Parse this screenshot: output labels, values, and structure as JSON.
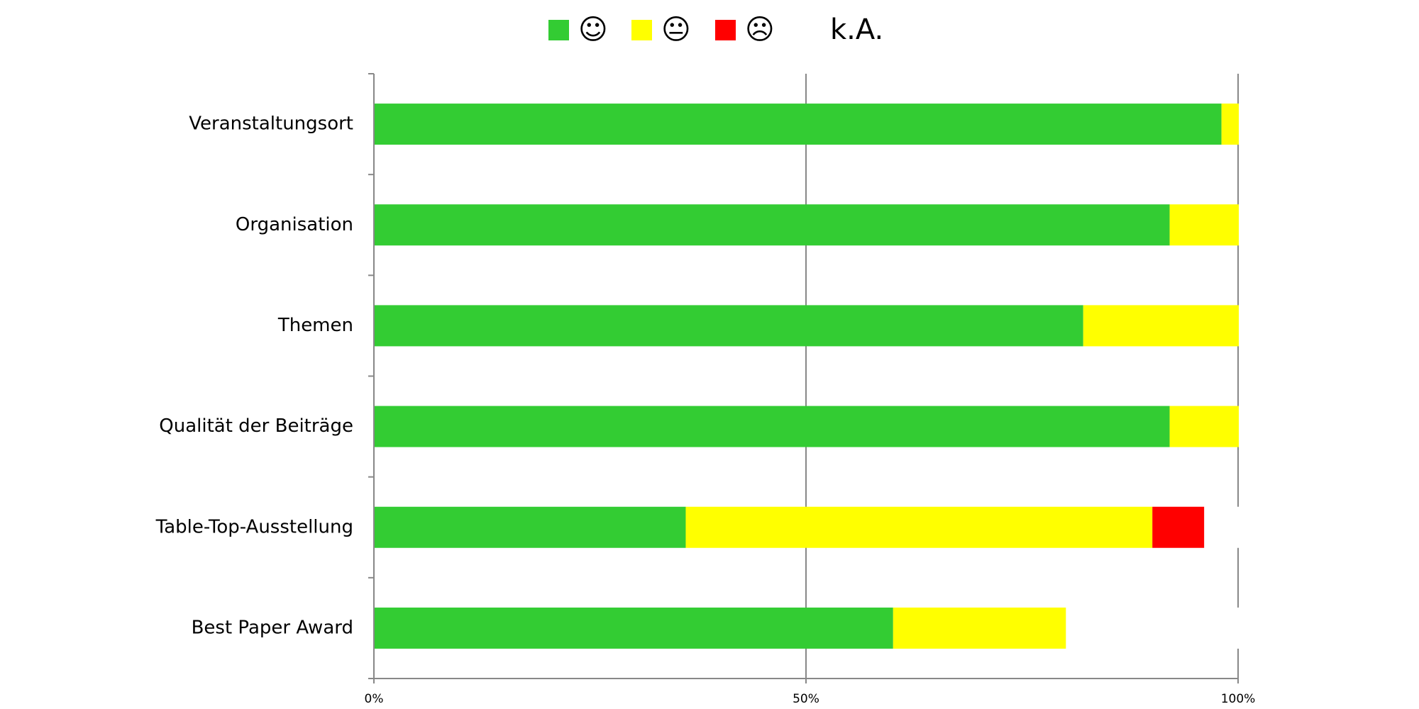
{
  "chart_data": {
    "type": "stacked-barh",
    "categories": [
      "Veranstaltungsort",
      "Organisation",
      "Themen",
      "Qualität der Beiträge",
      "Table-Top-Ausstellung",
      "Best Paper Award"
    ],
    "series": [
      {
        "name": "☺",
        "color": "#33cc33",
        "values": [
          98,
          92,
          82,
          92,
          36,
          60
        ]
      },
      {
        "name": "😐",
        "color": "#ffff00",
        "values": [
          2,
          8,
          18,
          8,
          54,
          20
        ]
      },
      {
        "name": "☹",
        "color": "#ff0000",
        "values": [
          0,
          0,
          0,
          0,
          6,
          0
        ]
      },
      {
        "name": "k.A.",
        "color": "#ffffff",
        "values": [
          0,
          0,
          0,
          0,
          4,
          20
        ]
      }
    ],
    "xlim": [
      0,
      100
    ],
    "xticks": [
      {
        "value": 0,
        "label": "0%"
      },
      {
        "value": 50,
        "label": "50%"
      },
      {
        "value": 100,
        "label": "100%"
      }
    ],
    "grid": true,
    "legend": "top"
  }
}
